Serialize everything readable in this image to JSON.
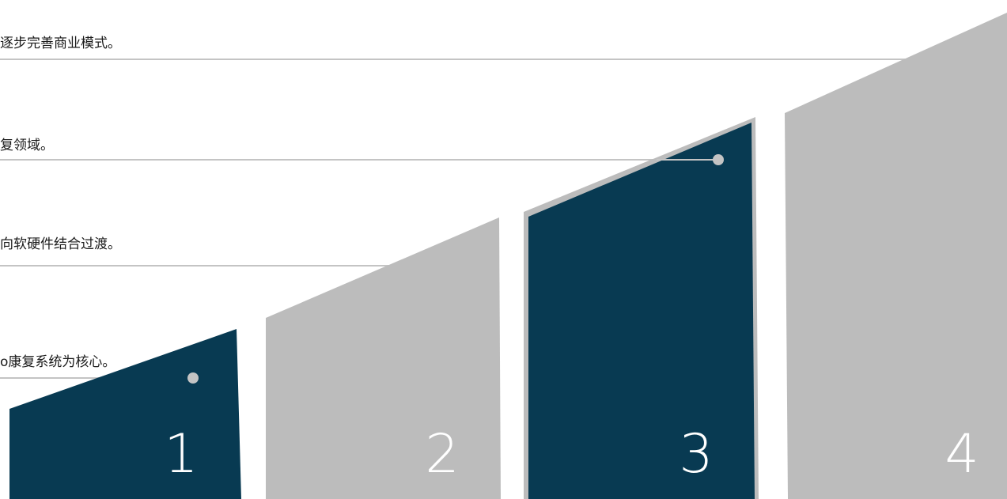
{
  "steps": [
    {
      "number": "1",
      "caption": "o康复系统为核心。",
      "highlighted": true
    },
    {
      "number": "2",
      "caption": "向软硬件结合过渡。",
      "highlighted": false
    },
    {
      "number": "3",
      "caption": "复领域。",
      "highlighted": true
    },
    {
      "number": "4",
      "caption": "逐步完善商业模式。",
      "highlighted": false
    }
  ],
  "colors": {
    "highlight": "#083a52",
    "neutral": "#bcbcbc",
    "rule": "#c4c4c4",
    "caption_text": "#1a1a1a",
    "number_text": "#ffffff"
  }
}
